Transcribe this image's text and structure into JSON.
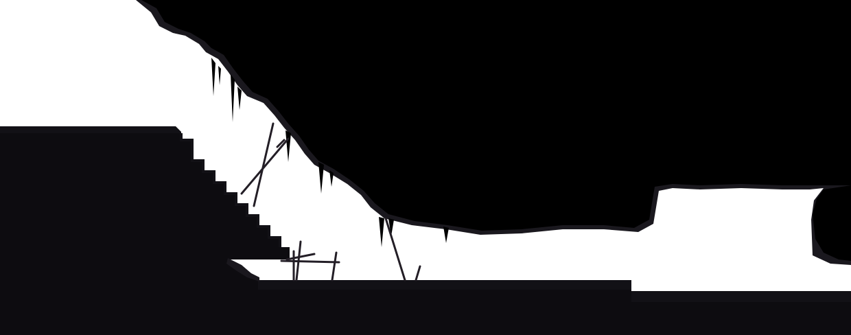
{
  "scene": {
    "style": "monochrome silhouette platformer",
    "colors": {
      "background": "#ffffff",
      "silhouette": "#000000",
      "ground": "#0d0c10",
      "ground_top": "#121116",
      "rock_rim": "#1a181e",
      "debris": "#231e26"
    }
  }
}
